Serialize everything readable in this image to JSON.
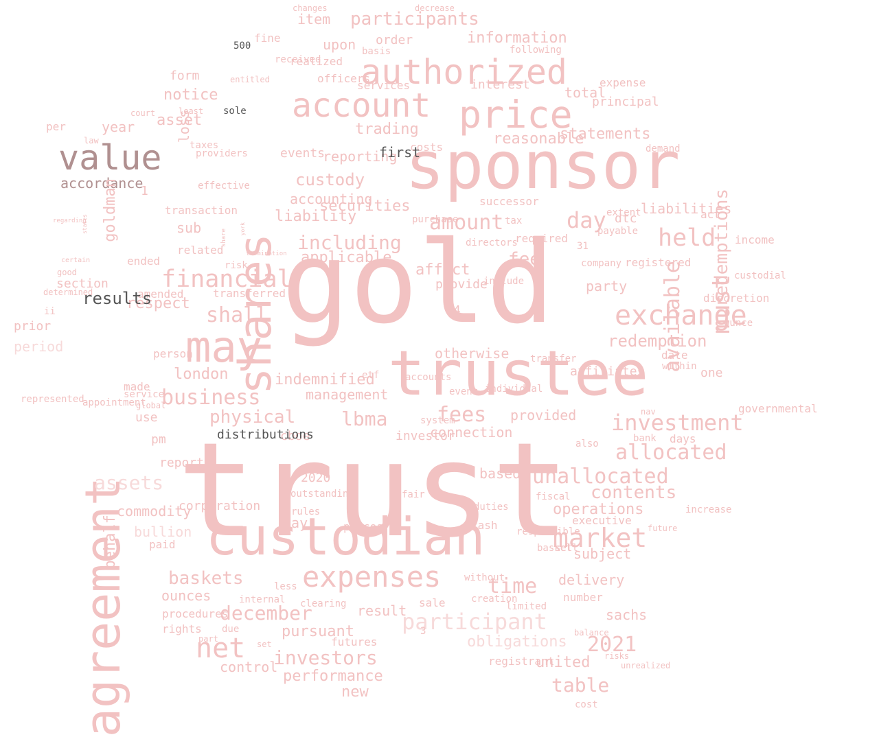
{
  "palette": {
    "primary": "#f2c2c2",
    "light": "#f7dada",
    "faint": "#fbe8e8",
    "brown": "#b09090",
    "dark": "#555555"
  },
  "words": [
    {
      "text": "trust",
      "tone": "primary",
      "vertical": false
    },
    {
      "text": "gold",
      "tone": "primary",
      "vertical": false
    },
    {
      "text": "sponsor",
      "tone": "primary",
      "vertical": false
    },
    {
      "text": "trustee",
      "tone": "primary",
      "vertical": false
    },
    {
      "text": "custodian",
      "tone": "primary",
      "vertical": false
    },
    {
      "text": "agreement",
      "tone": "primary",
      "vertical": true
    },
    {
      "text": "shares",
      "tone": "primary",
      "vertical": true
    },
    {
      "text": "authorized",
      "tone": "primary",
      "vertical": false
    },
    {
      "text": "account",
      "tone": "primary",
      "vertical": false
    },
    {
      "text": "price",
      "tone": "primary",
      "vertical": false
    },
    {
      "text": "may",
      "tone": "primary",
      "vertical": false
    },
    {
      "text": "exchange",
      "tone": "primary",
      "vertical": false
    },
    {
      "text": "expenses",
      "tone": "primary",
      "vertical": false
    },
    {
      "text": "value",
      "tone": "brown",
      "vertical": false
    },
    {
      "text": "accordance",
      "tone": "brown",
      "vertical": false
    },
    {
      "text": "market",
      "tone": "primary",
      "vertical": false
    },
    {
      "text": "net",
      "tone": "primary",
      "vertical": false
    },
    {
      "text": "financial",
      "tone": "primary",
      "vertical": false
    },
    {
      "text": "business",
      "tone": "primary",
      "vertical": false
    },
    {
      "text": "investment",
      "tone": "primary",
      "vertical": false
    },
    {
      "text": "unallocated",
      "tone": "primary",
      "vertical": false
    },
    {
      "text": "participant",
      "tone": "light",
      "vertical": false
    },
    {
      "text": "december",
      "tone": "primary",
      "vertical": false
    },
    {
      "text": "time",
      "tone": "primary",
      "vertical": false
    },
    {
      "text": "participants",
      "tone": "primary",
      "vertical": false
    },
    {
      "text": "information",
      "tone": "primary",
      "vertical": false
    },
    {
      "text": "held",
      "tone": "primary",
      "vertical": false
    },
    {
      "text": "day",
      "tone": "primary",
      "vertical": false
    },
    {
      "text": "fee",
      "tone": "primary",
      "vertical": false
    },
    {
      "text": "amount",
      "tone": "primary",
      "vertical": false
    },
    {
      "text": "including",
      "tone": "primary",
      "vertical": false
    },
    {
      "text": "custody",
      "tone": "primary",
      "vertical": false
    },
    {
      "text": "shall",
      "tone": "primary",
      "vertical": false
    },
    {
      "text": "physical",
      "tone": "primary",
      "vertical": false
    },
    {
      "text": "lbma",
      "tone": "primary",
      "vertical": false
    },
    {
      "text": "fees",
      "tone": "primary",
      "vertical": false
    },
    {
      "text": "allocated",
      "tone": "primary",
      "vertical": false
    },
    {
      "text": "contents",
      "tone": "primary",
      "vertical": false
    },
    {
      "text": "baskets",
      "tone": "primary",
      "vertical": false
    },
    {
      "text": "investors",
      "tone": "primary",
      "vertical": false
    },
    {
      "text": "table",
      "tone": "primary",
      "vertical": false
    },
    {
      "text": "2021",
      "tone": "primary",
      "vertical": false
    },
    {
      "text": "assets",
      "tone": "light",
      "vertical": false
    },
    {
      "text": "statements",
      "tone": "primary",
      "vertical": false
    },
    {
      "text": "reasonable",
      "tone": "primary",
      "vertical": false
    },
    {
      "text": "redemption",
      "tone": "primary",
      "vertical": false
    },
    {
      "text": "trading",
      "tone": "primary",
      "vertical": false
    },
    {
      "text": "asset",
      "tone": "primary",
      "vertical": false
    },
    {
      "text": "applicable",
      "tone": "primary",
      "vertical": false
    },
    {
      "text": "securities",
      "tone": "primary",
      "vertical": false
    },
    {
      "text": "liability",
      "tone": "primary",
      "vertical": false
    },
    {
      "text": "indemnified",
      "tone": "primary",
      "vertical": false
    },
    {
      "text": "otherwise",
      "tone": "primary",
      "vertical": false
    },
    {
      "text": "management",
      "tone": "primary",
      "vertical": false
    },
    {
      "text": "operations",
      "tone": "primary",
      "vertical": false
    },
    {
      "text": "obligations",
      "tone": "light",
      "vertical": false
    },
    {
      "text": "performance",
      "tone": "primary",
      "vertical": false
    },
    {
      "text": "pursuant",
      "tone": "primary",
      "vertical": false
    },
    {
      "text": "result",
      "tone": "primary",
      "vertical": false
    },
    {
      "text": "delivery",
      "tone": "primary",
      "vertical": false
    },
    {
      "text": "subject",
      "tone": "primary",
      "vertical": false
    },
    {
      "text": "sachs",
      "tone": "primary",
      "vertical": false
    },
    {
      "text": "united",
      "tone": "primary",
      "vertical": false
    },
    {
      "text": "new",
      "tone": "primary",
      "vertical": false
    },
    {
      "text": "ounces",
      "tone": "primary",
      "vertical": false
    },
    {
      "text": "london",
      "tone": "primary",
      "vertical": false
    },
    {
      "text": "respect",
      "tone": "primary",
      "vertical": false
    },
    {
      "text": "loss",
      "tone": "primary",
      "vertical": true
    },
    {
      "text": "goldman",
      "tone": "primary",
      "vertical": true
    },
    {
      "text": "behalf",
      "tone": "primary",
      "vertical": true
    },
    {
      "text": "bullion",
      "tone": "light",
      "vertical": false
    },
    {
      "text": "period",
      "tone": "light",
      "vertical": false
    },
    {
      "text": "prior",
      "tone": "primary",
      "vertical": false
    },
    {
      "text": "notice",
      "tone": "primary",
      "vertical": false
    },
    {
      "text": "year",
      "tone": "primary",
      "vertical": false
    },
    {
      "text": "form",
      "tone": "primary",
      "vertical": false
    },
    {
      "text": "principal",
      "tone": "primary",
      "vertical": false
    },
    {
      "text": "expense",
      "tone": "primary",
      "vertical": false
    },
    {
      "text": "interest",
      "tone": "primary",
      "vertical": false
    },
    {
      "text": "total",
      "tone": "primary",
      "vertical": false
    },
    {
      "text": "liabilities",
      "tone": "primary",
      "vertical": false
    },
    {
      "text": "dtc",
      "tone": "primary",
      "vertical": false
    },
    {
      "text": "act",
      "tone": "primary",
      "vertical": false
    },
    {
      "text": "successor",
      "tone": "primary",
      "vertical": false
    },
    {
      "text": "party",
      "tone": "primary",
      "vertical": false
    },
    {
      "text": "registered",
      "tone": "primary",
      "vertical": false
    },
    {
      "text": "required",
      "tone": "primary",
      "vertical": false
    },
    {
      "text": "affect",
      "tone": "primary",
      "vertical": false
    },
    {
      "text": "provide",
      "tone": "primary",
      "vertical": false
    },
    {
      "text": "date",
      "tone": "primary",
      "vertical": false
    },
    {
      "text": "one",
      "tone": "primary",
      "vertical": false
    },
    {
      "text": "governmental",
      "tone": "primary",
      "vertical": false
    },
    {
      "text": "provided",
      "tone": "primary",
      "vertical": false
    },
    {
      "text": "cboe",
      "tone": "primary",
      "vertical": false
    },
    {
      "text": "investor",
      "tone": "primary",
      "vertical": false
    },
    {
      "text": "connection",
      "tone": "primary",
      "vertical": false
    },
    {
      "text": "based",
      "tone": "primary",
      "vertical": false
    },
    {
      "text": "2020",
      "tone": "primary",
      "vertical": false
    },
    {
      "text": "pay",
      "tone": "primary",
      "vertical": false
    },
    {
      "text": "prices",
      "tone": "primary",
      "vertical": false
    },
    {
      "text": "cash",
      "tone": "primary",
      "vertical": false
    },
    {
      "text": "registrant",
      "tone": "primary",
      "vertical": false
    },
    {
      "text": "futures",
      "tone": "primary",
      "vertical": false
    },
    {
      "text": "sale",
      "tone": "primary",
      "vertical": false
    },
    {
      "text": "creation",
      "tone": "primary",
      "vertical": false
    },
    {
      "text": "number",
      "tone": "primary",
      "vertical": false
    },
    {
      "text": "rights",
      "tone": "primary",
      "vertical": false
    },
    {
      "text": "procedures",
      "tone": "primary",
      "vertical": false
    },
    {
      "text": "control",
      "tone": "primary",
      "vertical": false
    },
    {
      "text": "internal",
      "tone": "primary",
      "vertical": false
    },
    {
      "text": "paid",
      "tone": "primary",
      "vertical": false
    },
    {
      "text": "corporation",
      "tone": "primary",
      "vertical": false
    },
    {
      "text": "report",
      "tone": "primary",
      "vertical": false
    },
    {
      "text": "pm",
      "tone": "primary",
      "vertical": false
    },
    {
      "text": "use",
      "tone": "primary",
      "vertical": false
    },
    {
      "text": "made",
      "tone": "primary",
      "vertical": false
    },
    {
      "text": "commodity",
      "tone": "primary",
      "vertical": false
    },
    {
      "text": "section",
      "tone": "primary",
      "vertical": false
    },
    {
      "text": "per",
      "tone": "primary",
      "vertical": false
    },
    {
      "text": "sub",
      "tone": "primary",
      "vertical": false
    },
    {
      "text": "related",
      "tone": "primary",
      "vertical": false
    },
    {
      "text": "ended",
      "tone": "primary",
      "vertical": false
    },
    {
      "text": "amended",
      "tone": "primary",
      "vertical": false
    },
    {
      "text": "transferred",
      "tone": "primary",
      "vertical": false
    },
    {
      "text": "transaction",
      "tone": "primary",
      "vertical": false
    },
    {
      "text": "accounting",
      "tone": "primary",
      "vertical": false
    },
    {
      "text": "reporting",
      "tone": "primary",
      "vertical": false
    },
    {
      "text": "upon",
      "tone": "primary",
      "vertical": false
    },
    {
      "text": "item",
      "tone": "primary",
      "vertical": false
    },
    {
      "text": "order",
      "tone": "primary",
      "vertical": false
    },
    {
      "text": "fine",
      "tone": "primary",
      "vertical": false
    },
    {
      "text": "realized",
      "tone": "primary",
      "vertical": false
    },
    {
      "text": "officers",
      "tone": "primary",
      "vertical": false
    },
    {
      "text": "services",
      "tone": "primary",
      "vertical": false
    },
    {
      "text": "basis",
      "tone": "primary",
      "vertical": false
    },
    {
      "text": "following",
      "tone": "primary",
      "vertical": false
    },
    {
      "text": "costs",
      "tone": "primary",
      "vertical": false
    },
    {
      "text": "demand",
      "tone": "primary",
      "vertical": false
    },
    {
      "text": "income",
      "tone": "primary",
      "vertical": false
    },
    {
      "text": "discretion",
      "tone": "primary",
      "vertical": false
    },
    {
      "text": "custodial",
      "tone": "primary",
      "vertical": false
    },
    {
      "text": "tax",
      "tone": "primary",
      "vertical": false
    },
    {
      "text": "purchase",
      "tone": "primary",
      "vertical": false
    },
    {
      "text": "system",
      "tone": "primary",
      "vertical": false
    },
    {
      "text": "also",
      "tone": "primary",
      "vertical": false
    },
    {
      "text": "days",
      "tone": "primary",
      "vertical": false
    },
    {
      "text": "bank",
      "tone": "primary",
      "vertical": false
    },
    {
      "text": "nav",
      "tone": "primary",
      "vertical": false
    },
    {
      "text": "transfer",
      "tone": "primary",
      "vertical": false
    },
    {
      "text": "within",
      "tone": "primary",
      "vertical": false
    },
    {
      "text": "ounce",
      "tone": "primary",
      "vertical": false
    },
    {
      "text": "company",
      "tone": "primary",
      "vertical": false
    },
    {
      "text": "payable",
      "tone": "primary",
      "vertical": false
    },
    {
      "text": "extent",
      "tone": "primary",
      "vertical": false
    },
    {
      "text": "include",
      "tone": "primary",
      "vertical": false
    },
    {
      "text": "directors",
      "tone": "primary",
      "vertical": false
    },
    {
      "text": "fiscal",
      "tone": "primary",
      "vertical": false
    },
    {
      "text": "duties",
      "tone": "primary",
      "vertical": false
    },
    {
      "text": "executive",
      "tone": "primary",
      "vertical": false
    },
    {
      "text": "future",
      "tone": "primary",
      "vertical": false
    },
    {
      "text": "responsible",
      "tone": "primary",
      "vertical": false
    },
    {
      "text": "basket",
      "tone": "primary",
      "vertical": false
    },
    {
      "text": "increase",
      "tone": "primary",
      "vertical": false
    },
    {
      "text": "sell",
      "tone": "primary",
      "vertical": false
    },
    {
      "text": "outstanding",
      "tone": "primary",
      "vertical": false
    },
    {
      "text": "fair",
      "tone": "primary",
      "vertical": false
    },
    {
      "text": "rules",
      "tone": "primary",
      "vertical": false
    },
    {
      "text": "due",
      "tone": "primary",
      "vertical": false
    },
    {
      "text": "clearing",
      "tone": "primary",
      "vertical": false
    },
    {
      "text": "limited",
      "tone": "primary",
      "vertical": false
    },
    {
      "text": "without",
      "tone": "primary",
      "vertical": false
    },
    {
      "text": "less",
      "tone": "primary",
      "vertical": false
    },
    {
      "text": "cost",
      "tone": "primary",
      "vertical": false
    },
    {
      "text": "unrealized",
      "tone": "primary",
      "vertical": false
    },
    {
      "text": "balance",
      "tone": "primary",
      "vertical": false
    },
    {
      "text": "risks",
      "tone": "primary",
      "vertical": false
    },
    {
      "text": "set",
      "tone": "primary",
      "vertical": false
    },
    {
      "text": "part",
      "tone": "primary",
      "vertical": false
    },
    {
      "text": "service",
      "tone": "primary",
      "vertical": false
    },
    {
      "text": "global",
      "tone": "primary",
      "vertical": false
    },
    {
      "text": "etf",
      "tone": "primary",
      "vertical": false
    },
    {
      "text": "accounts",
      "tone": "primary",
      "vertical": false
    },
    {
      "text": "event",
      "tone": "primary",
      "vertical": false
    },
    {
      "text": "individual",
      "tone": "primary",
      "vertical": false
    },
    {
      "text": "risk",
      "tone": "primary",
      "vertical": false
    },
    {
      "text": "effective",
      "tone": "primary",
      "vertical": false
    },
    {
      "text": "taxes",
      "tone": "primary",
      "vertical": false
    },
    {
      "text": "providers",
      "tone": "primary",
      "vertical": false
    },
    {
      "text": "law",
      "tone": "primary",
      "vertical": false
    },
    {
      "text": "court",
      "tone": "primary",
      "vertical": false
    },
    {
      "text": "least",
      "tone": "primary",
      "vertical": false
    },
    {
      "text": "ii",
      "tone": "primary",
      "vertical": false
    },
    {
      "text": "determined",
      "tone": "primary",
      "vertical": false
    },
    {
      "text": "good",
      "tone": "primary",
      "vertical": false
    },
    {
      "text": "certain",
      "tone": "primary",
      "vertical": false
    },
    {
      "text": "entitled",
      "tone": "primary",
      "vertical": false
    },
    {
      "text": "changes",
      "tone": "primary",
      "vertical": false
    },
    {
      "text": "decrease",
      "tone": "primary",
      "vertical": false
    },
    {
      "text": "events",
      "tone": "primary",
      "vertical": false
    },
    {
      "text": "person",
      "tone": "primary",
      "vertical": false
    },
    {
      "text": "affiliates",
      "tone": "primary",
      "vertical": false
    },
    {
      "text": "represented",
      "tone": "primary",
      "vertical": false
    },
    {
      "text": "appointment",
      "tone": "primary",
      "vertical": false
    },
    {
      "text": "received",
      "tone": "primary",
      "vertical": false
    },
    {
      "text": "regarding",
      "tone": "primary",
      "vertical": false
    },
    {
      "text": "termination",
      "tone": "primary",
      "vertical": false
    },
    {
      "text": "york",
      "tone": "primary",
      "vertical": true
    },
    {
      "text": "share",
      "tone": "primary",
      "vertical": true
    },
    {
      "text": "states",
      "tone": "primary",
      "vertical": true
    },
    {
      "text": "must",
      "tone": "primary",
      "vertical": true
    },
    {
      "text": "available",
      "tone": "primary",
      "vertical": true
    },
    {
      "text": "redemptions",
      "tone": "primary",
      "vertical": true
    },
    {
      "text": "results",
      "tone": "dark",
      "vertical": false
    },
    {
      "text": "first",
      "tone": "dark",
      "vertical": false
    },
    {
      "text": "distributions",
      "tone": "dark",
      "vertical": false
    },
    {
      "text": "500",
      "tone": "dark",
      "vertical": false
    },
    {
      "text": "sole",
      "tone": "dark",
      "vertical": false
    },
    {
      "text": "1",
      "tone": "primary",
      "vertical": false
    },
    {
      "text": "31",
      "tone": "primary",
      "vertical": false
    },
    {
      "text": "4",
      "tone": "primary",
      "vertical": false
    },
    {
      "text": "3",
      "tone": "primary",
      "vertical": false
    },
    {
      "text": "2",
      "tone": "primary",
      "vertical": false
    },
    {
      "text": "10",
      "tone": "primary",
      "vertical": false
    },
    {
      "text": "000",
      "tone": "primary",
      "vertical": false
    },
    {
      "text": "bzx",
      "tone": "primary",
      "vertical": false
    },
    {
      "text": "f",
      "tone": "primary",
      "vertical": false
    },
    {
      "text": "k",
      "tone": "primary",
      "vertical": false
    },
    {
      "text": "p",
      "tone": "primary",
      "vertical": false
    },
    {
      "text": "15",
      "tone": "primary",
      "vertical": false
    }
  ]
}
